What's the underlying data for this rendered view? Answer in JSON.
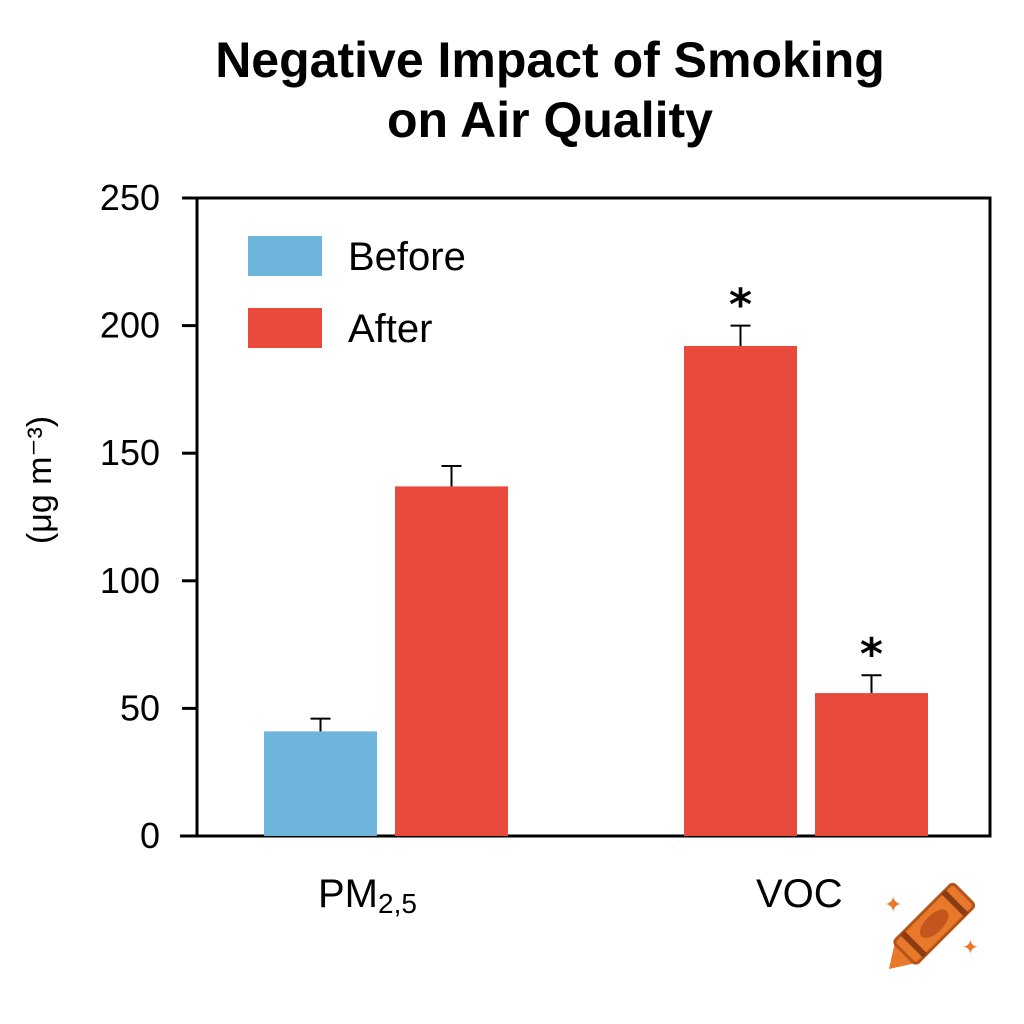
{
  "chart_data": {
    "type": "bar",
    "title_lines": [
      "Negative Impact of Smoking",
      "on Air Quality"
    ],
    "ylabel": "(μg m⁻³)",
    "ylim": [
      0,
      250
    ],
    "yticks": [
      0,
      50,
      100,
      150,
      200,
      250
    ],
    "categories": [
      {
        "label_main": "PM",
        "label_sub": "2,5"
      },
      {
        "label_main": "VOC",
        "label_sub": ""
      }
    ],
    "series": [
      {
        "name": "Before",
        "color": "#6db5dc",
        "values": [
          41,
          null
        ]
      },
      {
        "name": "After",
        "color": "#e84a3c",
        "values": [
          137,
          192
        ]
      }
    ],
    "extra_bars": [
      {
        "category": "VOC",
        "color": "#e84a3c",
        "value": 56,
        "error": 7,
        "marker": "*"
      }
    ],
    "errors": {
      "Before": [
        5,
        null
      ],
      "After": [
        8,
        8
      ]
    },
    "markers": {
      "Before": [
        null,
        null
      ],
      "After": [
        null,
        "*"
      ]
    },
    "grid": false,
    "legend_position": "top-left"
  },
  "decoration": {
    "icon": "crayon-icon",
    "color": "#e8782a"
  }
}
